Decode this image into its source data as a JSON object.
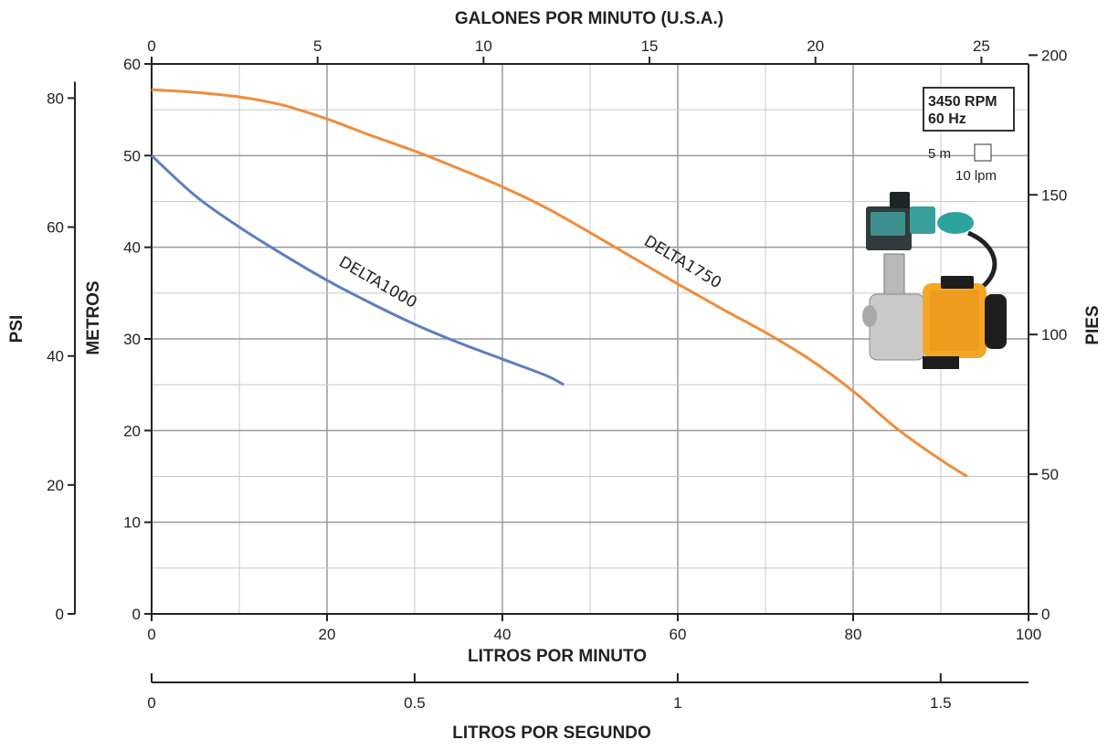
{
  "chart_data": {
    "type": "line",
    "title": "",
    "x_axis": {
      "label": "LITROS POR MINUTO",
      "range": [
        0,
        100
      ],
      "ticks": [
        0,
        20,
        40,
        60,
        80,
        100
      ]
    },
    "x_top_axis": {
      "label": "GALONES POR MINUTO (U.S.A.)",
      "range": [
        0,
        26.42
      ],
      "ticks": [
        0,
        5,
        10,
        15,
        20,
        25
      ]
    },
    "x_bottom_axis": {
      "label": "LITROS POR SEGUNDO",
      "range": [
        0,
        1.667
      ],
      "ticks": [
        "0",
        "0.5",
        "1",
        "1.5"
      ]
    },
    "y_axis": {
      "label": "METROS",
      "range": [
        0,
        60
      ],
      "ticks": [
        0,
        10,
        20,
        30,
        40,
        50,
        60
      ]
    },
    "y_left_outer_axis": {
      "label": "PSI",
      "range": [
        0,
        85.3
      ],
      "ticks": [
        0,
        20,
        40,
        60,
        80
      ]
    },
    "y_right_axis": {
      "label": "PIES",
      "range": [
        0,
        196.85
      ],
      "ticks": [
        0,
        50,
        100,
        150,
        200
      ]
    },
    "grid": true,
    "series": [
      {
        "name": "DELTA1000",
        "color": "#5b7fbf",
        "x": [
          0,
          5,
          10,
          15,
          20,
          25,
          30,
          35,
          40,
          45,
          47
        ],
        "y": [
          50,
          45.6,
          42.2,
          39.2,
          36.4,
          33.9,
          31.6,
          29.6,
          27.8,
          26.0,
          25
        ]
      },
      {
        "name": "DELTA1750",
        "color": "#f08c3c",
        "x": [
          0,
          5,
          10,
          15,
          20,
          25,
          30,
          35,
          40,
          45,
          50,
          55,
          60,
          65,
          70,
          75,
          80,
          85,
          90,
          93
        ],
        "y": [
          57.2,
          56.9,
          56.4,
          55.5,
          54.0,
          52.2,
          50.5,
          48.6,
          46.6,
          44.3,
          41.6,
          38.8,
          36.0,
          33.3,
          30.7,
          27.8,
          24.3,
          20.2,
          16.8,
          15
        ]
      }
    ]
  },
  "legend_box": {
    "rpm": "3450 RPM",
    "hz": "60 Hz"
  },
  "scale_note": {
    "vertical": "5 m",
    "horizontal": "10 lpm"
  },
  "colors": {
    "grid": "#c8c8c8",
    "axis": "#222222",
    "pump_body": "#f5a623"
  }
}
